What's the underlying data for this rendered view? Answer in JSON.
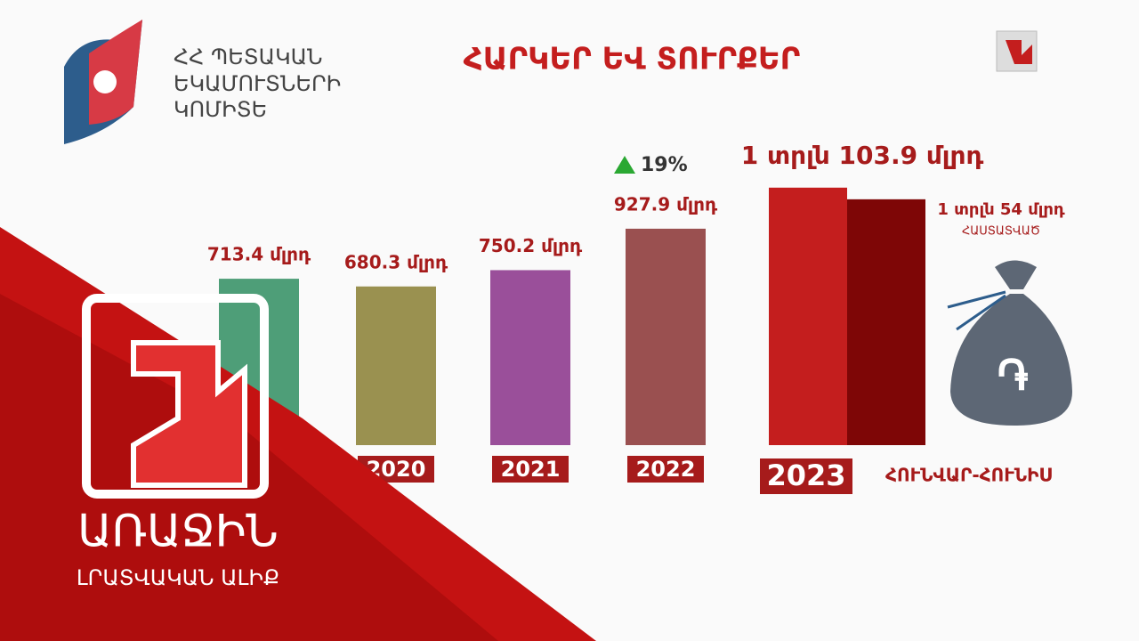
{
  "logo_text": [
    "ՀՀ ՊԵՏԱԿԱՆ",
    "ԵԿԱՄՈՒՏՆԵՐԻ",
    "ԿՈՄԻՏԵ"
  ],
  "chart_data": {
    "type": "bar",
    "title": "ՀԱՐԿԵՐ ԵՎ ՏՈՒՐՔԵՐ",
    "categories": [
      null,
      "2020",
      "2021",
      "2022",
      "2023"
    ],
    "values": [
      713.4,
      680.3,
      750.2,
      927.9,
      1103.9
    ],
    "value_labels": [
      "713.4 մլրդ",
      "680.3 մլրդ",
      "750.2 մլրդ",
      "927.9 մլրդ",
      "1 տրլն 103.9 մլրդ"
    ],
    "colors": [
      "#4e9e78",
      "#9a9150",
      "#9a4f9a",
      "#9a5050",
      "#c41e1e"
    ],
    "annotation": "19%",
    "period": "ՀՈՒՆՎԱՐ-ՀՈՒՆԻՍ",
    "confirmed": {
      "value": 1054,
      "value_label": "1 տրլն 54 մլրդ",
      "label": "ՀԱՍՏԱՏՎԱԾ",
      "color": "#7e0606"
    }
  },
  "channel": {
    "name": "ԱՌԱՋԻՆ",
    "subtitle": "ԼՐԱՏՎԱԿԱՆ ԱԼԻՔ"
  }
}
